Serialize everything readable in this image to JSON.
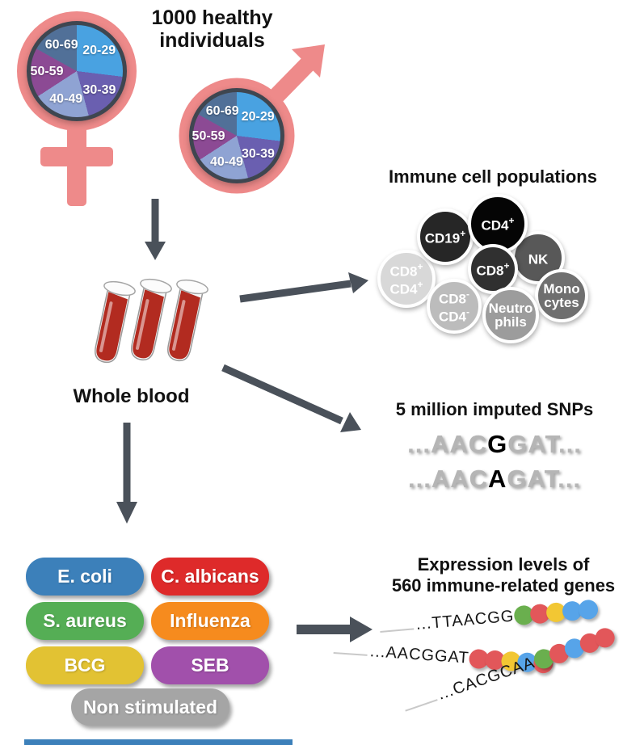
{
  "cohort": {
    "title_line1": "1000 healthy",
    "title_line2": "individuals",
    "symbol_color": "#ee8a8a"
  },
  "age_pie": {
    "ring_color": "#3f4650",
    "slices": [
      {
        "label": "20-29",
        "color": "#49a2e1",
        "sweep": 97
      },
      {
        "label": "30-39",
        "color": "#6a5fb0",
        "sweep": 68
      },
      {
        "label": "40-49",
        "color": "#8fa3d3",
        "sweep": 72
      },
      {
        "label": "50-59",
        "color": "#8c4a94",
        "sweep": 62
      },
      {
        "label": "60-69",
        "color": "#517098",
        "sweep": 61
      }
    ]
  },
  "whole_blood": {
    "label": "Whole blood",
    "blood_color": "#b22b20"
  },
  "immune_cells": {
    "title": "Immune cell populations",
    "items": [
      {
        "name": "CD8+CD4+",
        "color": "#d8d8d8",
        "lines": [
          {
            "text": "CD8",
            "sup": "+"
          },
          {
            "text": "CD4",
            "sup": "+"
          }
        ]
      },
      {
        "name": "NK",
        "color": "#585858",
        "lines": [
          {
            "text": "NK",
            "sup": ""
          }
        ]
      },
      {
        "name": "CD19+",
        "color": "#262626",
        "lines": [
          {
            "text": "CD19",
            "sup": "+"
          }
        ]
      },
      {
        "name": "CD4+",
        "color": "#050505",
        "lines": [
          {
            "text": "CD4",
            "sup": "+"
          }
        ]
      },
      {
        "name": "CD8+",
        "color": "#303030",
        "lines": [
          {
            "text": "CD8",
            "sup": "+"
          }
        ]
      },
      {
        "name": "CD8-CD4-",
        "color": "#bcbcbc",
        "lines": [
          {
            "text": "CD8",
            "sup": "-"
          },
          {
            "text": "CD4",
            "sup": "-"
          }
        ]
      },
      {
        "name": "Monocytes",
        "color": "#6f6f6f",
        "lines": [
          {
            "text": "Mono",
            "sup": ""
          },
          {
            "text": "cytes",
            "sup": ""
          }
        ]
      },
      {
        "name": "Neutrophils",
        "color": "#9c9c9c",
        "lines": [
          {
            "text": "Neutro",
            "sup": ""
          },
          {
            "text": "phils",
            "sup": ""
          }
        ]
      }
    ]
  },
  "snps": {
    "title": "5 million imputed SNPs",
    "sequences": [
      {
        "pre": "...AAC",
        "variant": "G",
        "post": "GAT..."
      },
      {
        "pre": "...AAC",
        "variant": "A",
        "post": "GAT..."
      }
    ]
  },
  "stimuli": {
    "items": [
      {
        "label": "E. coli",
        "color": "#3c80ba"
      },
      {
        "label": "C. albicans",
        "color": "#de2a2a"
      },
      {
        "label": "S. aureus",
        "color": "#55ae55"
      },
      {
        "label": "Influenza",
        "color": "#f68b1e"
      },
      {
        "label": "BCG",
        "color": "#e2c233"
      },
      {
        "label": "SEB",
        "color": "#a150ab"
      },
      {
        "label": "Non stimulated",
        "color": "#a5a5a5"
      }
    ]
  },
  "expression": {
    "title_line1": "Expression levels of",
    "title_line2": "560 immune-related genes",
    "rows": [
      {
        "seq": "...TTAACGG",
        "dots": [
          "#6aaf4e",
          "#e2575a",
          "#f2c733",
          "#57a4e9",
          "#57a4e9"
        ]
      },
      {
        "seq": "...AACGGAT",
        "dots": [
          "#e2575a",
          "#e2575a",
          "#f2c733",
          "#57a4e9",
          "#e2575a"
        ]
      },
      {
        "seq": "...CACGCAA",
        "dots": [
          "#6aaf4e",
          "#e2575a",
          "#57a4e9",
          "#e2575a",
          "#e2575a"
        ]
      }
    ]
  },
  "arrow_color": "#4a515a",
  "bottom_bar": {
    "color": "#3c80ba"
  }
}
